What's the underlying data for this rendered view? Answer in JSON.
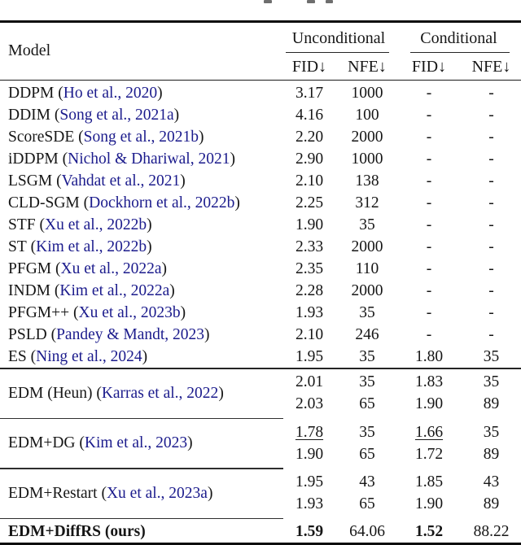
{
  "colors": {
    "text": "#161616",
    "citation_link": "#1b1b8c",
    "rule": "#1a1a1a",
    "background": "#ffffff"
  },
  "table": {
    "header": {
      "model_label": "Model",
      "groups": [
        {
          "label": "Unconditional"
        },
        {
          "label": "Conditional"
        }
      ],
      "subcolumns": [
        "FID↓",
        "NFE↓",
        "FID↓",
        "NFE↓"
      ]
    },
    "single_rows": [
      {
        "model": "DDPM",
        "citation": "Ho et al., 2020",
        "values": [
          "3.17",
          "1000",
          "-",
          "-"
        ]
      },
      {
        "model": "DDIM",
        "citation": "Song et al., 2021a",
        "values": [
          "4.16",
          "100",
          "-",
          "-"
        ]
      },
      {
        "model": "ScoreSDE",
        "citation": "Song et al., 2021b",
        "values": [
          "2.20",
          "2000",
          "-",
          "-"
        ]
      },
      {
        "model": "iDDPM",
        "citation": "Nichol & Dhariwal, 2021",
        "values": [
          "2.90",
          "1000",
          "-",
          "-"
        ]
      },
      {
        "model": "LSGM",
        "citation": "Vahdat et al., 2021",
        "values": [
          "2.10",
          "138",
          "-",
          "-"
        ]
      },
      {
        "model": "CLD-SGM",
        "citation": "Dockhorn et al., 2022b",
        "values": [
          "2.25",
          "312",
          "-",
          "-"
        ]
      },
      {
        "model": "STF",
        "citation": "Xu et al., 2022b",
        "values": [
          "1.90",
          "35",
          "-",
          "-"
        ]
      },
      {
        "model": "ST",
        "citation": "Kim et al., 2022b",
        "values": [
          "2.33",
          "2000",
          "-",
          "-"
        ]
      },
      {
        "model": "PFGM",
        "citation": "Xu et al., 2022a",
        "values": [
          "2.35",
          "110",
          "-",
          "-"
        ]
      },
      {
        "model": "INDM",
        "citation": "Kim et al., 2022a",
        "values": [
          "2.28",
          "2000",
          "-",
          "-"
        ]
      },
      {
        "model": "PFGM++",
        "citation": "Xu et al., 2023b",
        "values": [
          "1.93",
          "35",
          "-",
          "-"
        ]
      },
      {
        "model": "PSLD",
        "citation": "Pandey & Mandt, 2023",
        "values": [
          "2.10",
          "246",
          "-",
          "-"
        ]
      },
      {
        "model": "ES",
        "citation": "Ning et al., 2024",
        "values": [
          "1.95",
          "35",
          "1.80",
          "35"
        ]
      }
    ],
    "group_rows": [
      {
        "model": "EDM (Heun)",
        "citation": "Karras et al., 2022",
        "rows": [
          {
            "values": [
              "2.01",
              "35",
              "1.83",
              "35"
            ]
          },
          {
            "values": [
              "2.03",
              "65",
              "1.90",
              "89"
            ]
          }
        ]
      },
      {
        "model": "EDM+DG",
        "citation": "Kim et al., 2023",
        "rows": [
          {
            "values": [
              "1.78",
              "35",
              "1.66",
              "35"
            ],
            "underline": [
              0,
              2
            ]
          },
          {
            "values": [
              "1.90",
              "65",
              "1.72",
              "89"
            ]
          }
        ]
      },
      {
        "model": "EDM+Restart",
        "citation": "Xu et al., 2023a",
        "rows": [
          {
            "values": [
              "1.95",
              "43",
              "1.85",
              "43"
            ]
          },
          {
            "values": [
              "1.93",
              "65",
              "1.90",
              "89"
            ]
          }
        ]
      }
    ],
    "final_row": {
      "model": "EDM+DiffRS (ours)",
      "values": [
        "1.59",
        "64.06",
        "1.52",
        "88.22"
      ],
      "bold": [
        0,
        2
      ]
    }
  }
}
